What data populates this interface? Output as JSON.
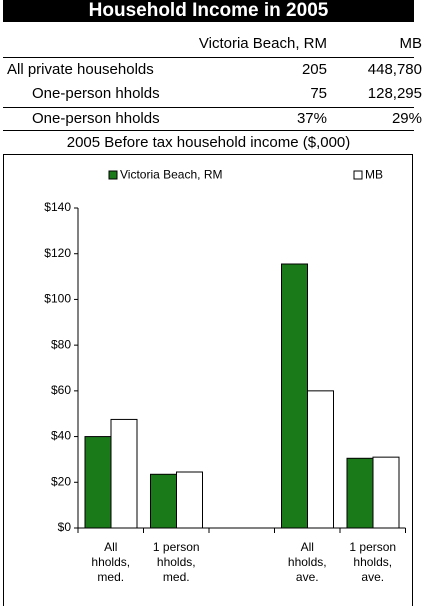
{
  "title": "Household Income in 2005",
  "table": {
    "columns": [
      "Victoria Beach, RM",
      "MB"
    ],
    "rows": [
      [
        "All private households",
        "205",
        "448,780"
      ],
      [
        "One-person hholds",
        "75",
        "128,295"
      ],
      [
        "One-person hholds",
        "37%",
        "29%"
      ]
    ]
  },
  "chart_data": {
    "type": "bar",
    "title": "2005 Before tax household income ($,000)",
    "categories": [
      "All\nhholds,\nmed.",
      "1 person\nhholds,\nmed.",
      null,
      "All\nhholds,\nave.",
      "1 person\nhholds,\nave."
    ],
    "series": [
      {
        "name": "Victoria Beach, RM",
        "color": "#1a7a1a",
        "values": [
          40,
          23.5,
          null,
          115.5,
          30.5
        ]
      },
      {
        "name": "MB",
        "color": "#ffffff",
        "values": [
          47.5,
          24.5,
          null,
          60,
          31
        ]
      }
    ],
    "ylim": [
      0,
      140
    ],
    "yticks": [
      {
        "value": 0,
        "label": "$0"
      },
      {
        "value": 20,
        "label": "$20"
      },
      {
        "value": 40,
        "label": "$40"
      },
      {
        "value": 60,
        "label": "$60"
      },
      {
        "value": 80,
        "label": "$80"
      },
      {
        "value": 100,
        "label": "$100"
      },
      {
        "value": 120,
        "label": "$120"
      },
      {
        "value": 140,
        "label": "$140"
      }
    ],
    "grid": false,
    "legend": "top"
  }
}
